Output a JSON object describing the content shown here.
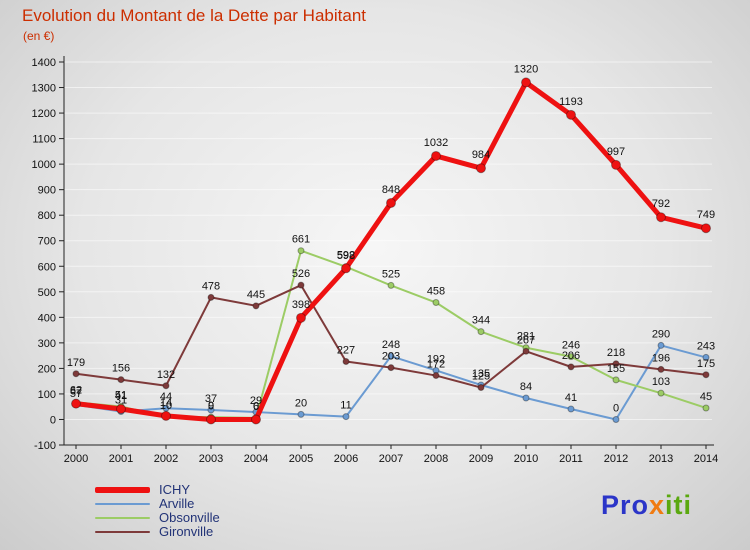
{
  "chart_data": {
    "type": "line",
    "title": "Evolution du Montant de la Dette par Habitant",
    "subtitle": "(en €)",
    "x": [
      2000,
      2001,
      2002,
      2003,
      2004,
      2005,
      2006,
      2007,
      2008,
      2009,
      2010,
      2011,
      2012,
      2013,
      2014
    ],
    "ylim": [
      -100,
      1400
    ],
    "ytick_step": 100,
    "grid": "horizontal",
    "legend_position": "bottom-left",
    "series": [
      {
        "name": "ICHY",
        "color": "#ee1111",
        "width": 5,
        "values": [
          62,
          41,
          14,
          0,
          0,
          398,
          592,
          848,
          1032,
          984,
          1320,
          1193,
          997,
          792,
          749
        ]
      },
      {
        "name": "Arville",
        "color": "#6b9bd2",
        "width": 2,
        "values": [
          57,
          31,
          44,
          37,
          29,
          20,
          11,
          248,
          192,
          135,
          84,
          41,
          0,
          290,
          243
        ]
      },
      {
        "name": "Obsonville",
        "color": "#9ccc65",
        "width": 2,
        "values": [
          67,
          51,
          10,
          9,
          6,
          661,
          598,
          525,
          458,
          344,
          281,
          246,
          155,
          103,
          45
        ]
      },
      {
        "name": "Gironville",
        "color": "#7e3a3a",
        "width": 2,
        "values": [
          179,
          156,
          132,
          478,
          445,
          526,
          227,
          203,
          172,
          125,
          267,
          206,
          218,
          196,
          175
        ]
      }
    ]
  },
  "colors": {
    "title": "#cc2e00",
    "axis": "#222222",
    "label": "#111111",
    "grid": "#ffffff",
    "legend_text": "#223377"
  },
  "logo": {
    "parts": [
      {
        "text": "Pro",
        "color": "#2b35c8"
      },
      {
        "text": "x",
        "color": "#f07b11"
      },
      {
        "text": "iti",
        "color": "#5aa80f"
      }
    ]
  }
}
